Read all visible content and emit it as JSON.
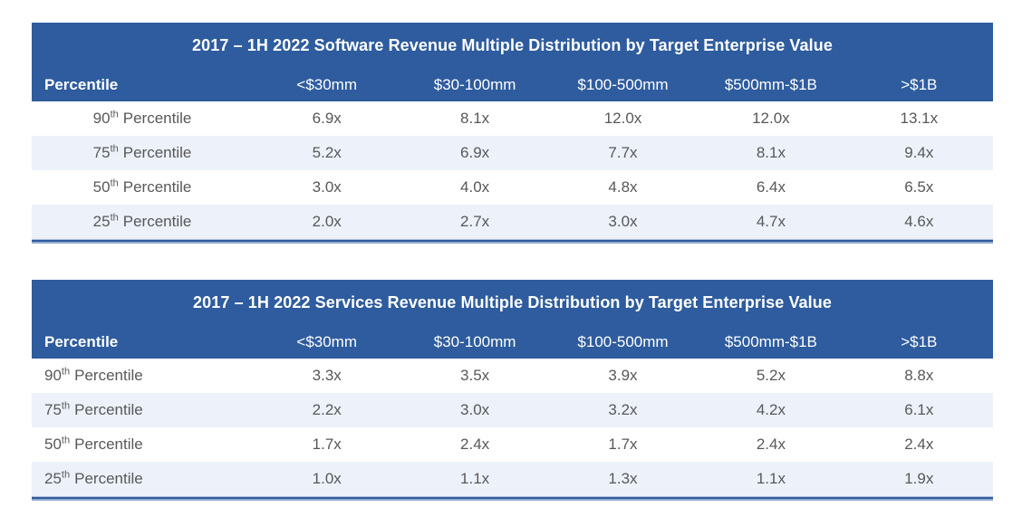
{
  "colors": {
    "header_blue": "#2e5c9e",
    "row_alt": "#ecf1fa",
    "text_gray": "#585858",
    "title_white": "#ffffff",
    "rule_dark": "#2f5b9e",
    "rule_mid": "#8fa8d0",
    "rule_hair": "#b0c0de"
  },
  "tables": [
    {
      "title": "2017 – 1H 2022 Software Revenue Multiple Distribution by Target Enterprise Value",
      "columns": [
        "Percentile",
        "<$30mm",
        "$30-100mm",
        "$100-500mm",
        "$500mm-$1B",
        ">$1B"
      ],
      "rows": [
        {
          "ordinal": "90",
          "suffix": "th",
          "label": "Percentile",
          "values": [
            "6.9x",
            "8.1x",
            "12.0x",
            "12.0x",
            "13.1x"
          ]
        },
        {
          "ordinal": "75",
          "suffix": "th",
          "label": "Percentile",
          "values": [
            "5.2x",
            "6.9x",
            "7.7x",
            "8.1x",
            "9.4x"
          ]
        },
        {
          "ordinal": "50",
          "suffix": "th",
          "label": "Percentile",
          "values": [
            "3.0x",
            "4.0x",
            "4.8x",
            "6.4x",
            "6.5x"
          ]
        },
        {
          "ordinal": "25",
          "suffix": "th",
          "label": "Percentile",
          "values": [
            "2.0x",
            "2.7x",
            "3.0x",
            "4.7x",
            "4.6x"
          ]
        }
      ]
    },
    {
      "title": "2017 – 1H 2022 Services Revenue Multiple Distribution by Target Enterprise Value",
      "columns": [
        "Percentile",
        "<$30mm",
        "$30-100mm",
        "$100-500mm",
        "$500mm-$1B",
        ">$1B"
      ],
      "rows": [
        {
          "ordinal": "90",
          "suffix": "th",
          "label": "Percentile",
          "values": [
            "3.3x",
            "3.5x",
            "3.9x",
            "5.2x",
            "8.8x"
          ]
        },
        {
          "ordinal": "75",
          "suffix": "th",
          "label": "Percentile",
          "values": [
            "2.2x",
            "3.0x",
            "3.2x",
            "4.2x",
            "6.1x"
          ]
        },
        {
          "ordinal": "50",
          "suffix": "th",
          "label": "Percentile",
          "values": [
            "1.7x",
            "2.4x",
            "1.7x",
            "2.4x",
            "2.4x"
          ]
        },
        {
          "ordinal": "25",
          "suffix": "th",
          "label": "Percentile",
          "values": [
            "1.0x",
            "1.1x",
            "1.3x",
            "1.1x",
            "1.9x"
          ]
        }
      ]
    }
  ],
  "chart_data": [
    {
      "type": "table",
      "title": "2017 – 1H 2022 Software Revenue Multiple Distribution by Target Enterprise Value",
      "columns": [
        "Percentile",
        "<$30mm",
        "$30-100mm",
        "$100-500mm",
        "$500mm-$1B",
        ">$1B"
      ],
      "rows": [
        [
          "90th Percentile",
          "6.9x",
          "8.1x",
          "12.0x",
          "12.0x",
          "13.1x"
        ],
        [
          "75th Percentile",
          "5.2x",
          "6.9x",
          "7.7x",
          "8.1x",
          "9.4x"
        ],
        [
          "50th Percentile",
          "3.0x",
          "4.0x",
          "4.8x",
          "6.4x",
          "6.5x"
        ],
        [
          "25th Percentile",
          "2.0x",
          "2.7x",
          "3.0x",
          "4.7x",
          "4.6x"
        ]
      ]
    },
    {
      "type": "table",
      "title": "2017 – 1H 2022 Services Revenue Multiple Distribution by Target Enterprise Value",
      "columns": [
        "Percentile",
        "<$30mm",
        "$30-100mm",
        "$100-500mm",
        "$500mm-$1B",
        ">$1B"
      ],
      "rows": [
        [
          "90th Percentile",
          "3.3x",
          "3.5x",
          "3.9x",
          "5.2x",
          "8.8x"
        ],
        [
          "75th Percentile",
          "2.2x",
          "3.0x",
          "3.2x",
          "4.2x",
          "6.1x"
        ],
        [
          "50th Percentile",
          "1.7x",
          "2.4x",
          "1.7x",
          "2.4x",
          "2.4x"
        ],
        [
          "25th Percentile",
          "1.0x",
          "1.1x",
          "1.3x",
          "1.1x",
          "1.9x"
        ]
      ]
    }
  ]
}
